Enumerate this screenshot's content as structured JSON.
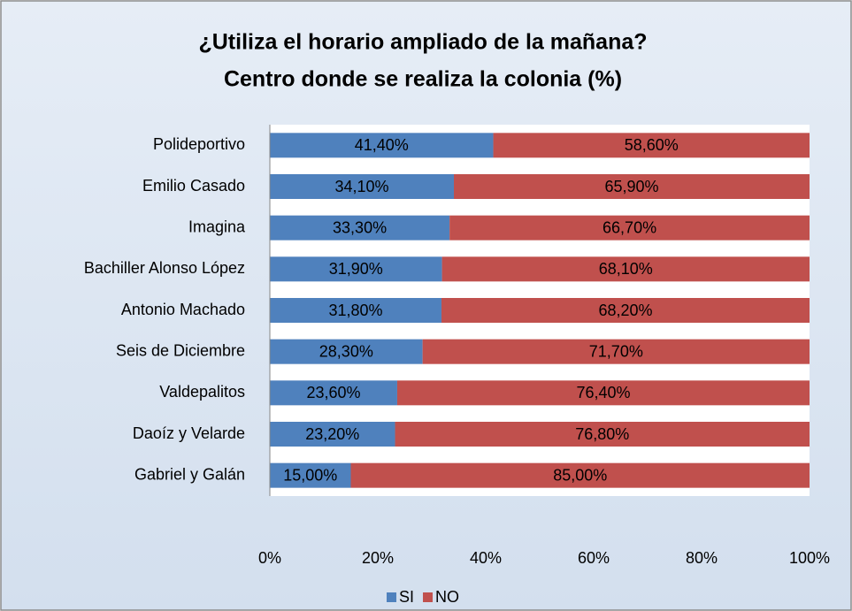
{
  "chart_data": {
    "type": "stacked_bar_horizontal",
    "title": [
      "¿Utiliza el horario ampliado de la mañana?",
      "Centro donde se realiza la colonia (%)"
    ],
    "categories": [
      "Polideportivo",
      "Emilio Casado",
      "Imagina",
      "Bachiller Alonso López",
      "Antonio Machado",
      "Seis de Diciembre",
      "Valdepalitos",
      "Daoíz y Velarde",
      "Gabriel y Galán"
    ],
    "series": [
      {
        "name": "SI",
        "color": "#4f81bd",
        "values": [
          41.4,
          34.1,
          33.3,
          31.9,
          31.8,
          28.3,
          23.6,
          23.2,
          15.0
        ],
        "value_labels": [
          "41,40%",
          "34,10%",
          "33,30%",
          "31,90%",
          "31,80%",
          "28,30%",
          "23,60%",
          "23,20%",
          "15,00%"
        ]
      },
      {
        "name": "NO",
        "color": "#c0504d",
        "values": [
          58.6,
          65.9,
          66.7,
          68.1,
          68.2,
          71.7,
          76.4,
          76.8,
          85.0
        ],
        "value_labels": [
          "58,60%",
          "65,90%",
          "66,70%",
          "68,10%",
          "68,20%",
          "71,70%",
          "76,40%",
          "76,80%",
          "85,00%"
        ]
      }
    ],
    "xlim": [
      0,
      100
    ],
    "xticks": [
      {
        "value": 0,
        "label": "0%"
      },
      {
        "value": 20,
        "label": "20%"
      },
      {
        "value": 40,
        "label": "40%"
      },
      {
        "value": 60,
        "label": "60%"
      },
      {
        "value": 80,
        "label": "80%"
      },
      {
        "value": 100,
        "label": "100%"
      }
    ],
    "legend": "bottom"
  }
}
